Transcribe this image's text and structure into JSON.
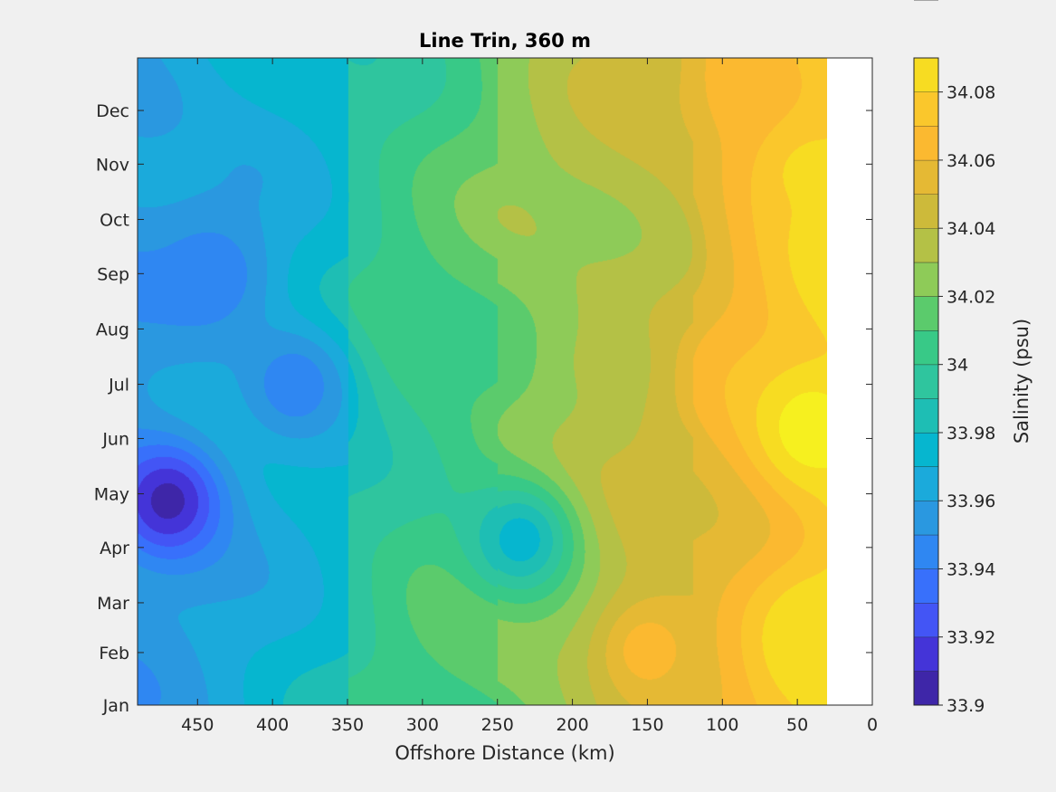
{
  "chart_data": {
    "type": "filled-contour",
    "title": "Line Trin, 360 m",
    "xlabel": "Offshore Distance (km)",
    "ylabel": "",
    "xlim": [
      490,
      0
    ],
    "x_reversed": true,
    "x_ticks": [
      450,
      400,
      350,
      300,
      250,
      200,
      150,
      100,
      50,
      0
    ],
    "ylim": [
      0,
      11.7
    ],
    "y_ticks": [
      {
        "value": 0,
        "label": "Jan"
      },
      {
        "value": 0.95,
        "label": "Feb"
      },
      {
        "value": 1.85,
        "label": "Mar"
      },
      {
        "value": 2.85,
        "label": "Apr"
      },
      {
        "value": 3.82,
        "label": "May"
      },
      {
        "value": 4.82,
        "label": "Jun"
      },
      {
        "value": 5.8,
        "label": "Jul"
      },
      {
        "value": 6.8,
        "label": "Aug"
      },
      {
        "value": 7.8,
        "label": "Sep"
      },
      {
        "value": 8.78,
        "label": "Oct"
      },
      {
        "value": 9.78,
        "label": "Nov"
      },
      {
        "value": 10.75,
        "label": "Dec"
      }
    ],
    "data_x_extent_km": [
      30,
      490
    ],
    "colorbar": {
      "label": "Salinity (psu)",
      "range": [
        33.9,
        34.09
      ],
      "levels": [
        33.9,
        33.91,
        33.92,
        33.93,
        33.94,
        33.95,
        33.96,
        33.97,
        33.98,
        33.99,
        34.0,
        34.01,
        34.02,
        34.03,
        34.04,
        34.05,
        34.06,
        34.07,
        34.08,
        34.09
      ],
      "tick_values": [
        33.9,
        33.92,
        33.94,
        33.96,
        33.98,
        34.0,
        34.02,
        34.04,
        34.06,
        34.08
      ],
      "tick_labels": [
        "33.9",
        "33.92",
        "33.94",
        "33.96",
        "33.98",
        "34",
        "34.02",
        "34.04",
        "34.06",
        "34.08"
      ],
      "colors": [
        "#3e26a8",
        "#4434d8",
        "#4355f5",
        "#3870fb",
        "#2f87f2",
        "#2a98e0",
        "#1baadb",
        "#06b6cf",
        "#1ebeb4",
        "#2fc59e",
        "#38c987",
        "#5bcb6c",
        "#8ecb58",
        "#b4c146",
        "#cdba3a",
        "#e5b934",
        "#fbb930",
        "#fac72c",
        "#f7dc22",
        "#f6f01f"
      ]
    },
    "salinity_features": [
      {
        "x": 470,
        "y": 3.7,
        "salinity": 33.905
      },
      {
        "x": 485,
        "y": 10.9,
        "salinity": 33.955
      },
      {
        "x": 440,
        "y": 7.8,
        "salinity": 33.94
      },
      {
        "x": 385,
        "y": 5.8,
        "salinity": 33.94
      },
      {
        "x": 235,
        "y": 3.0,
        "salinity": 33.97
      },
      {
        "x": 180,
        "y": 6.2,
        "salinity": 34.025
      },
      {
        "x": 40,
        "y": 5.0,
        "salinity": 34.088
      },
      {
        "x": 40,
        "y": 1.3,
        "salinity": 34.08
      },
      {
        "x": 45,
        "y": 9.8,
        "salinity": 34.075
      },
      {
        "x": 80,
        "y": 11.2,
        "salinity": 34.06
      },
      {
        "x": 150,
        "y": 1.0,
        "salinity": 34.058
      }
    ]
  }
}
